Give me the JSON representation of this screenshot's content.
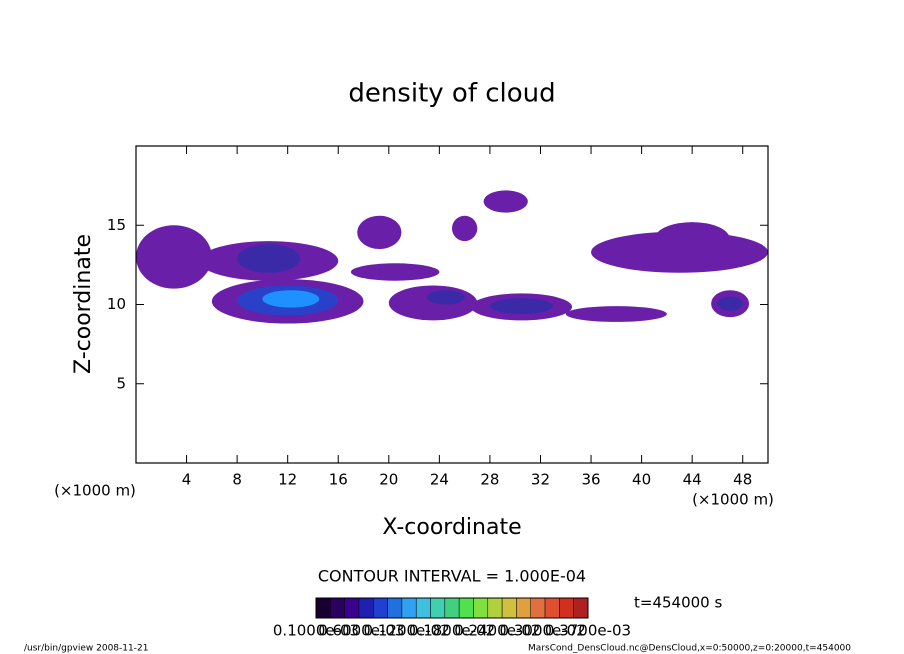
{
  "chart_data": {
    "type": "contour",
    "title": "density of cloud",
    "xlabel": "X-coordinate",
    "ylabel": "Z-coordinate",
    "xunit": "(×1000 m)",
    "yunit": "(×1000 m)",
    "xlim": [
      0,
      50
    ],
    "ylim": [
      0,
      20
    ],
    "xticks": [
      4,
      8,
      12,
      16,
      20,
      24,
      28,
      32,
      36,
      40,
      44,
      48
    ],
    "yticks": [
      5,
      10,
      15
    ],
    "regions": [
      {
        "x": [
          0,
          6
        ],
        "z": [
          11,
          15
        ],
        "color": "#6a1fa8"
      },
      {
        "x": [
          5,
          16
        ],
        "z": [
          11.5,
          14
        ],
        "color": "#6a1fa8"
      },
      {
        "x": [
          8,
          13
        ],
        "z": [
          12,
          13.8
        ],
        "color": "#3a2aa8"
      },
      {
        "x": [
          6,
          18
        ],
        "z": [
          8.8,
          11.6
        ],
        "color": "#6a1fa8"
      },
      {
        "x": [
          8,
          16
        ],
        "z": [
          9.3,
          11.2
        ],
        "color": "#2a40c8"
      },
      {
        "x": [
          10,
          14.5
        ],
        "z": [
          9.8,
          10.9
        ],
        "color": "#1e90ff"
      },
      {
        "x": [
          17,
          24
        ],
        "z": [
          11.5,
          12.6
        ],
        "color": "#6a1fa8"
      },
      {
        "x": [
          17.5,
          21
        ],
        "z": [
          13.5,
          15.6
        ],
        "color": "#6a1fa8"
      },
      {
        "x": [
          25,
          27
        ],
        "z": [
          14,
          15.6
        ],
        "color": "#6a1fa8"
      },
      {
        "x": [
          27.5,
          31
        ],
        "z": [
          15.8,
          17.2
        ],
        "color": "#6a1fa8"
      },
      {
        "x": [
          20,
          27
        ],
        "z": [
          9,
          11.2
        ],
        "color": "#6a1fa8"
      },
      {
        "x": [
          23,
          26
        ],
        "z": [
          10,
          10.9
        ],
        "color": "#3a2aa8"
      },
      {
        "x": [
          26.5,
          34.5
        ],
        "z": [
          9,
          10.7
        ],
        "color": "#6a1fa8"
      },
      {
        "x": [
          28,
          33
        ],
        "z": [
          9.4,
          10.4
        ],
        "color": "#3a2aa8"
      },
      {
        "x": [
          34,
          42
        ],
        "z": [
          8.9,
          9.9
        ],
        "color": "#6a1fa8"
      },
      {
        "x": [
          36,
          50
        ],
        "z": [
          12,
          14.6
        ],
        "color": "#6a1fa8"
      },
      {
        "x": [
          41,
          47
        ],
        "z": [
          13,
          15.2
        ],
        "color": "#6a1fa8"
      },
      {
        "x": [
          45.5,
          48.5
        ],
        "z": [
          9.2,
          10.9
        ],
        "color": "#6a1fa8"
      },
      {
        "x": [
          46,
          48
        ],
        "z": [
          9.6,
          10.5
        ],
        "color": "#3a2aa8"
      }
    ],
    "contour_interval": "CONTOUR INTERVAL = 1.000E-04",
    "time": "t=454000 s",
    "colorbar_colors": [
      "#1a0030",
      "#2a0060",
      "#3a0090",
      "#2020b0",
      "#2040d0",
      "#2070e0",
      "#30a0f0",
      "#40c0e0",
      "#40d0b0",
      "#40d080",
      "#50e050",
      "#80e040",
      "#b0d040",
      "#d0c040",
      "#e0a040",
      "#e07040",
      "#e05030",
      "#d03020",
      "#b02020"
    ],
    "colorbar_labels": [
      "0.1000e-03",
      "0.6000e-03",
      "0.1200e-02",
      "0.1800e-02",
      "0.2400e-02",
      "0.3000e-02",
      "0.3700e-03"
    ],
    "footer_left": "/usr/bin/gpview   2008-11-21",
    "footer_right": "MarsCond_DensCloud.nc@DensCloud,x=0:50000,z=0:20000,t=454000"
  }
}
